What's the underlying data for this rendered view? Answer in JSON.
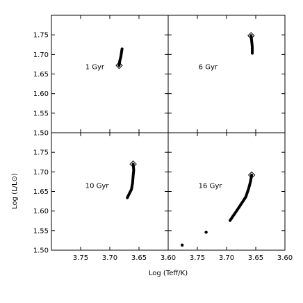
{
  "chart_data": {
    "type": "scatter",
    "xlabel": "Log (Teff/K)",
    "ylabel": "Log (L/L⊙)",
    "xlim": [
      3.8,
      3.6
    ],
    "ylim": [
      1.5,
      1.8
    ],
    "x_ticks": [
      "3.75",
      "3.70",
      "3.65",
      "3.60"
    ],
    "x_tick_values": [
      3.75,
      3.7,
      3.65,
      3.6
    ],
    "y_ticks": [
      "1.50",
      "1.55",
      "1.60",
      "1.65",
      "1.70",
      "1.75"
    ],
    "y_tick_values": [
      1.5,
      1.55,
      1.6,
      1.65,
      1.7,
      1.75
    ],
    "grid": false,
    "panels": [
      {
        "label": "1 Gyr",
        "track": [
          [
            3.684,
            1.672
          ],
          [
            3.683,
            1.683
          ],
          [
            3.681,
            1.695
          ],
          [
            3.68,
            1.705
          ],
          [
            3.679,
            1.714
          ]
        ],
        "marker": [
          3.684,
          1.672
        ],
        "points": []
      },
      {
        "label": "6 Gyr",
        "track": [
          [
            3.658,
            1.748
          ],
          [
            3.657,
            1.735
          ],
          [
            3.656,
            1.72
          ],
          [
            3.656,
            1.703
          ]
        ],
        "marker": [
          3.658,
          1.748
        ],
        "points": []
      },
      {
        "label": "10 Gyr",
        "track": [
          [
            3.66,
            1.72
          ],
          [
            3.659,
            1.705
          ],
          [
            3.66,
            1.69
          ],
          [
            3.661,
            1.672
          ],
          [
            3.663,
            1.655
          ],
          [
            3.667,
            1.643
          ],
          [
            3.67,
            1.634
          ]
        ],
        "marker": [
          3.66,
          1.72
        ],
        "points": []
      },
      {
        "label": "16 Gyr",
        "track": [
          [
            3.657,
            1.692
          ],
          [
            3.659,
            1.675
          ],
          [
            3.662,
            1.658
          ],
          [
            3.667,
            1.636
          ],
          [
            3.674,
            1.62
          ],
          [
            3.683,
            1.6
          ],
          [
            3.694,
            1.576
          ]
        ],
        "marker": [
          3.657,
          1.692
        ],
        "points": [
          [
            3.735,
            1.546
          ],
          [
            3.776,
            1.513
          ]
        ]
      }
    ]
  }
}
